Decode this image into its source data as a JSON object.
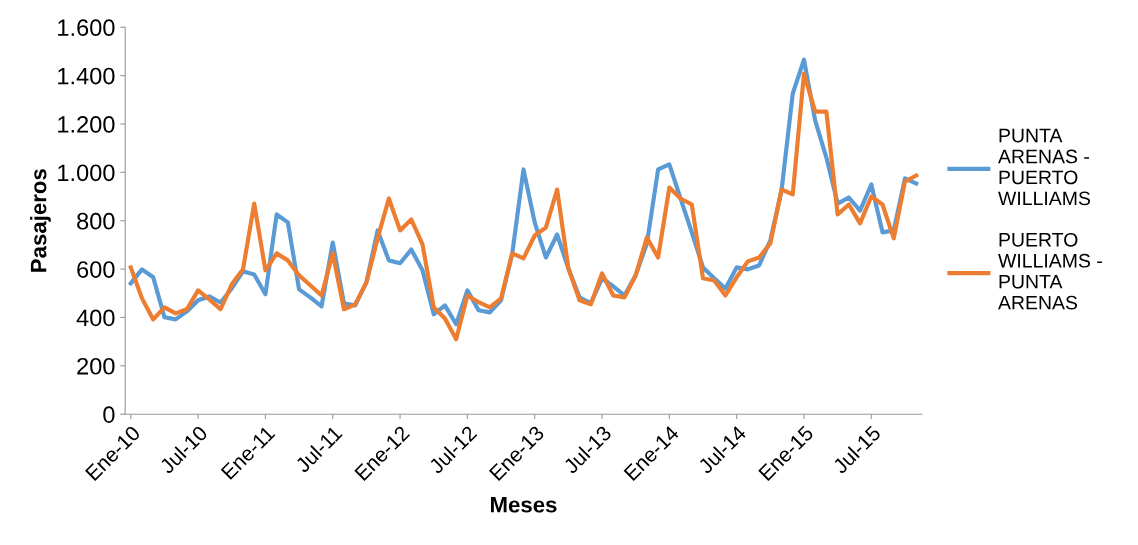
{
  "chart_data": {
    "type": "line",
    "xlabel": "Meses",
    "ylabel": "Pasajeros",
    "categories": [
      "Ene-10",
      null,
      null,
      null,
      null,
      null,
      "Jul-10",
      null,
      null,
      null,
      null,
      null,
      "Ene-11",
      null,
      null,
      null,
      null,
      null,
      "Jul-11",
      null,
      null,
      null,
      null,
      null,
      "Ene-12",
      null,
      null,
      null,
      null,
      null,
      "Jul-12",
      null,
      null,
      null,
      null,
      null,
      "Ene-13",
      null,
      null,
      null,
      null,
      null,
      "Jul-13",
      null,
      null,
      null,
      null,
      null,
      "Ene-14",
      null,
      null,
      null,
      null,
      null,
      "Jul-14",
      null,
      null,
      null,
      null,
      null,
      "Ene-15",
      null,
      null,
      null,
      null,
      null,
      "Jul-15",
      null,
      null,
      null,
      null
    ],
    "series": [
      {
        "name": "PUNTA\nARENAS -\nPUERTO\nWILLIAMS",
        "color": "#5b9bd5",
        "values": [
          541,
          599,
          566,
          401,
          392,
          425,
          471,
          487,
          462,
          520,
          591,
          578,
          496,
          826,
          793,
          516,
          483,
          446,
          710,
          458,
          450,
          545,
          760,
          636,
          624,
          681,
          595,
          413,
          450,
          372,
          512,
          430,
          421,
          471,
          665,
          1012,
          793,
          648,
          743,
          603,
          483,
          458,
          562,
          529,
          491,
          574,
          706,
          1012,
          1033,
          892,
          752,
          607,
          562,
          520,
          607,
          599,
          615,
          719,
          925,
          1326,
          1466,
          1214,
          1061,
          871,
          896,
          842,
          950,
          752,
          760,
          975,
          954
        ]
      },
      {
        "name": "PUERTO\nWILLIAMS -\nPUNTA\nARENAS",
        "color": "#ed7d31",
        "values": [
          607,
          479,
          392,
          442,
          417,
          434,
          512,
          475,
          434,
          537,
          599,
          871,
          595,
          665,
          636,
          574,
          533,
          491,
          665,
          434,
          454,
          545,
          727,
          892,
          760,
          805,
          702,
          442,
          396,
          310,
          491,
          463,
          442,
          479,
          665,
          644,
          739,
          772,
          929,
          603,
          471,
          454,
          582,
          491,
          483,
          574,
          731,
          648,
          937,
          892,
          867,
          562,
          553,
          491,
          566,
          632,
          648,
          706,
          929,
          909,
          1408,
          1251,
          1251,
          826,
          867,
          789,
          900,
          867,
          727,
          962,
          987
        ]
      }
    ],
    "ylim": [
      0,
      1600
    ],
    "yticks": [
      0,
      200,
      400,
      600,
      800,
      {
        "value": 1000,
        "label": "1.000"
      },
      {
        "value": 1200,
        "label": "1.200"
      },
      {
        "value": 1400,
        "label": "1.400"
      },
      {
        "value": 1600,
        "label": "1.600"
      }
    ],
    "grid": false,
    "legend": "right",
    "marker": "none",
    "line_style": "solid"
  }
}
